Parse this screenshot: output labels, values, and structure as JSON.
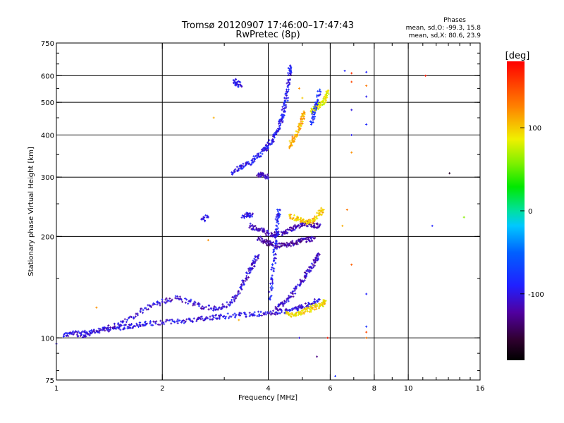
{
  "chart_data": {
    "type": "scatter",
    "title": "Tromsø 20120907 17:46:00–17:47:43",
    "subtitle": "RwPretec (8p)",
    "xlabel": "Frequency [MHz]",
    "ylabel": "Stationary phase Virtual Height [km]",
    "x_scale": "log",
    "y_scale": "log",
    "xlim": [
      1,
      16
    ],
    "ylim": [
      75,
      750
    ],
    "x_ticks": [
      1,
      2,
      4,
      6,
      8,
      10,
      16
    ],
    "x_tick_labels": [
      "1",
      "2",
      "4",
      "6",
      "8",
      "10",
      "16"
    ],
    "y_ticks": [
      75,
      100,
      200,
      300,
      400,
      500,
      600,
      750
    ],
    "y_tick_labels": [
      "75",
      "100",
      "200",
      "300",
      "400",
      "500",
      "600",
      "750"
    ],
    "grid": true,
    "phases_box": {
      "title": "Phases",
      "line1": "mean, sd,O: -99.3, 15.8",
      "line2": "mean, sd,X:  80.6, 23.9"
    },
    "colorbar": {
      "label": "[deg]",
      "range": [
        -180,
        180
      ],
      "ticks": [
        100,
        0,
        -100
      ],
      "tick_labels": [
        "100",
        "0",
        "-100"
      ]
    },
    "traces": [
      {
        "phase": -100,
        "points": [
          [
            1.05,
            102
          ],
          [
            1.1,
            103
          ],
          [
            1.2,
            104
          ],
          [
            1.3,
            105
          ],
          [
            1.4,
            106
          ],
          [
            1.5,
            107
          ],
          [
            1.6,
            108
          ],
          [
            1.7,
            109
          ],
          [
            1.8,
            110
          ],
          [
            2.0,
            111
          ],
          [
            2.2,
            112
          ],
          [
            2.4,
            113
          ],
          [
            2.6,
            114
          ],
          [
            2.8,
            115
          ],
          [
            3.0,
            116
          ],
          [
            3.3,
            117
          ],
          [
            3.6,
            117
          ],
          [
            3.9,
            118
          ],
          [
            4.2,
            119
          ],
          [
            4.5,
            120
          ],
          [
            4.8,
            122
          ],
          [
            5.0,
            124
          ],
          [
            5.3,
            126
          ],
          [
            5.6,
            130
          ]
        ]
      },
      {
        "phase": -105,
        "points": [
          [
            1.15,
            101
          ],
          [
            1.25,
            103
          ],
          [
            1.4,
            107
          ],
          [
            1.55,
            112
          ],
          [
            1.7,
            118
          ],
          [
            1.85,
            124
          ],
          [
            2.0,
            128
          ],
          [
            2.2,
            131
          ],
          [
            2.4,
            128
          ],
          [
            2.6,
            124
          ],
          [
            2.8,
            122
          ],
          [
            3.0,
            124
          ],
          [
            3.2,
            130
          ],
          [
            3.35,
            140
          ],
          [
            3.45,
            150
          ],
          [
            3.55,
            160
          ],
          [
            3.65,
            168
          ],
          [
            3.75,
            175
          ]
        ]
      },
      {
        "phase": -95,
        "points": [
          [
            3.15,
            310
          ],
          [
            3.3,
            318
          ],
          [
            3.45,
            326
          ],
          [
            3.6,
            335
          ],
          [
            3.75,
            348
          ],
          [
            3.9,
            362
          ],
          [
            4.0,
            372
          ],
          [
            4.1,
            385
          ],
          [
            4.2,
            402
          ],
          [
            4.3,
            425
          ],
          [
            4.38,
            450
          ],
          [
            4.45,
            480
          ],
          [
            4.5,
            515
          ],
          [
            4.55,
            560
          ],
          [
            4.6,
            610
          ],
          [
            4.62,
            640
          ]
        ]
      },
      {
        "phase": -115,
        "points": [
          [
            3.55,
            215
          ],
          [
            3.7,
            212
          ],
          [
            3.85,
            208
          ],
          [
            4.0,
            204
          ],
          [
            4.2,
            203
          ],
          [
            4.4,
            205
          ],
          [
            4.6,
            210
          ],
          [
            4.8,
            214
          ],
          [
            5.0,
            218
          ],
          [
            5.2,
            218
          ],
          [
            5.4,
            216
          ],
          [
            5.6,
            215
          ]
        ]
      },
      {
        "phase": -120,
        "points": [
          [
            3.75,
            198
          ],
          [
            3.9,
            193
          ],
          [
            4.05,
            190
          ],
          [
            4.2,
            188
          ],
          [
            4.4,
            188
          ],
          [
            4.6,
            190
          ],
          [
            4.8,
            192
          ],
          [
            5.0,
            195
          ],
          [
            5.2,
            196
          ],
          [
            5.4,
            197
          ]
        ]
      },
      {
        "phase": -110,
        "points": [
          [
            4.2,
            122
          ],
          [
            4.4,
            126
          ],
          [
            4.6,
            132
          ],
          [
            4.8,
            140
          ],
          [
            5.0,
            148
          ],
          [
            5.15,
            155
          ],
          [
            5.3,
            162
          ],
          [
            5.45,
            170
          ],
          [
            5.55,
            178
          ]
        ]
      },
      {
        "phase": -90,
        "points": [
          [
            4.05,
            130
          ],
          [
            4.1,
            150
          ],
          [
            4.15,
            170
          ],
          [
            4.2,
            190
          ],
          [
            4.22,
            205
          ],
          [
            4.25,
            225
          ],
          [
            4.3,
            240
          ]
        ]
      },
      {
        "phase": 95,
        "points": [
          [
            4.5,
            118
          ],
          [
            4.7,
            117
          ],
          [
            4.9,
            118
          ],
          [
            5.1,
            120
          ],
          [
            5.3,
            122
          ],
          [
            5.5,
            124
          ],
          [
            5.7,
            126
          ],
          [
            5.8,
            128
          ]
        ]
      },
      {
        "phase": 100,
        "points": [
          [
            4.6,
            230
          ],
          [
            4.8,
            225
          ],
          [
            5.0,
            222
          ],
          [
            5.2,
            220
          ],
          [
            5.4,
            225
          ],
          [
            5.6,
            235
          ],
          [
            5.75,
            240
          ]
        ]
      },
      {
        "phase": 85,
        "points": [
          [
            5.3,
            470
          ],
          [
            5.45,
            480
          ],
          [
            5.6,
            490
          ],
          [
            5.75,
            500
          ],
          [
            5.85,
            520
          ],
          [
            5.9,
            540
          ]
        ]
      },
      {
        "phase": 110,
        "points": [
          [
            4.6,
            370
          ],
          [
            4.7,
            385
          ],
          [
            4.8,
            400
          ],
          [
            4.9,
            420
          ],
          [
            5.0,
            445
          ],
          [
            5.05,
            470
          ]
        ]
      },
      {
        "phase": -100,
        "points": [
          [
            3.4,
            230
          ],
          [
            3.5,
            232
          ],
          [
            3.6,
            232
          ]
        ]
      },
      {
        "phase": -100,
        "points": [
          [
            2.6,
            225
          ],
          [
            2.7,
            228
          ]
        ]
      },
      {
        "phase": -100,
        "points": [
          [
            3.2,
            580
          ],
          [
            3.25,
            570
          ],
          [
            3.35,
            560
          ]
        ]
      },
      {
        "phase": -85,
        "points": [
          [
            5.3,
            430
          ],
          [
            5.4,
            460
          ],
          [
            5.5,
            500
          ],
          [
            5.6,
            540
          ]
        ]
      },
      {
        "phase": -110,
        "points": [
          [
            3.75,
            305
          ],
          [
            3.85,
            305
          ],
          [
            4.0,
            300
          ]
        ]
      }
    ],
    "sparse_points": [
      {
        "x": 6.6,
        "y": 620,
        "phase": -90
      },
      {
        "x": 6.9,
        "y": 610,
        "phase": 160
      },
      {
        "x": 7.6,
        "y": 615,
        "phase": -90
      },
      {
        "x": 6.9,
        "y": 575,
        "phase": 150
      },
      {
        "x": 7.6,
        "y": 560,
        "phase": 130
      },
      {
        "x": 7.6,
        "y": 520,
        "phase": -95
      },
      {
        "x": 6.9,
        "y": 475,
        "phase": -100
      },
      {
        "x": 7.6,
        "y": 430,
        "phase": -85
      },
      {
        "x": 6.9,
        "y": 400,
        "phase": -95
      },
      {
        "x": 6.9,
        "y": 355,
        "phase": 120
      },
      {
        "x": 6.9,
        "y": 165,
        "phase": 140
      },
      {
        "x": 7.6,
        "y": 135,
        "phase": -90
      },
      {
        "x": 7.6,
        "y": 108,
        "phase": -80
      },
      {
        "x": 7.6,
        "y": 104,
        "phase": 150
      },
      {
        "x": 7.6,
        "y": 100,
        "phase": 130
      },
      {
        "x": 6.5,
        "y": 215,
        "phase": 110
      },
      {
        "x": 6.7,
        "y": 240,
        "phase": 130
      },
      {
        "x": 11.2,
        "y": 600,
        "phase": 170
      },
      {
        "x": 13.1,
        "y": 308,
        "phase": -160
      },
      {
        "x": 11.7,
        "y": 215,
        "phase": -90
      },
      {
        "x": 14.4,
        "y": 228,
        "phase": 60
      },
      {
        "x": 2.8,
        "y": 450,
        "phase": 110
      },
      {
        "x": 1.3,
        "y": 123,
        "phase": 120
      },
      {
        "x": 2.7,
        "y": 195,
        "phase": 120
      },
      {
        "x": 1.0,
        "y": 96,
        "phase": -100
      },
      {
        "x": 5.5,
        "y": 88,
        "phase": -130
      },
      {
        "x": 6.2,
        "y": 77,
        "phase": -80
      },
      {
        "x": 4.9,
        "y": 100,
        "phase": -100
      },
      {
        "x": 5.9,
        "y": 100,
        "phase": 170
      },
      {
        "x": 3.3,
        "y": 113,
        "phase": 110
      },
      {
        "x": 4.9,
        "y": 550,
        "phase": 120
      },
      {
        "x": 5.0,
        "y": 515,
        "phase": 100
      }
    ]
  }
}
